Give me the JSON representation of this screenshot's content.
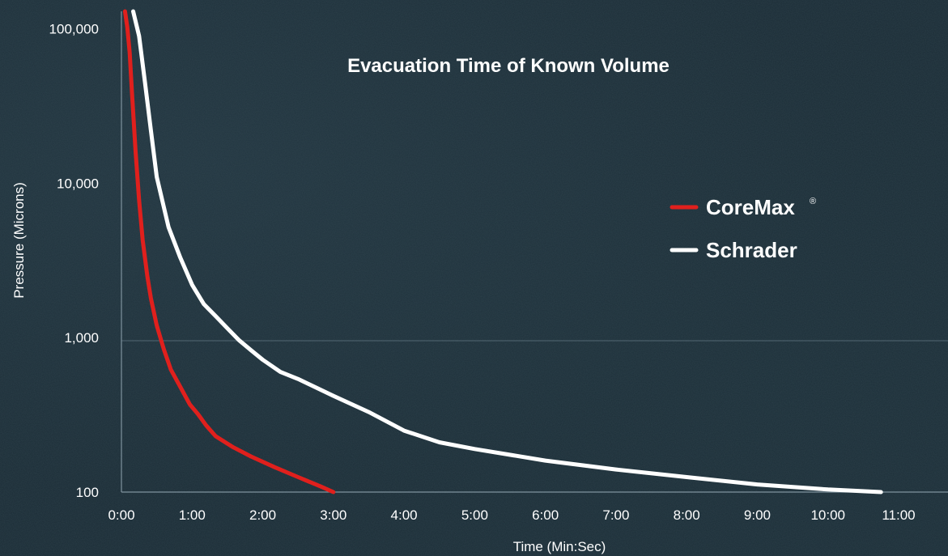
{
  "chart_data": {
    "type": "line",
    "title": "Evacuation Time of Known Volume",
    "xlabel": "Time (Min:Sec)",
    "ylabel": "Pressure (Microns)",
    "y_scale": "log",
    "xlim": [
      "0:00",
      "11:00"
    ],
    "ylim": [
      100,
      130000
    ],
    "x_ticks": [
      "0:00",
      "1:00",
      "2:00",
      "3:00",
      "4:00",
      "5:00",
      "6:00",
      "7:00",
      "8:00",
      "9:00",
      "10:00",
      "11:00"
    ],
    "y_ticks": [
      "100",
      "1,000",
      "10,000",
      "100,000"
    ],
    "grid": "horizontal line at 1,000",
    "legend": {
      "placement": "right",
      "super": "®"
    },
    "series": [
      {
        "name": "CoreMax",
        "color": "#e0201d",
        "x": [
          "0:03",
          "0:05",
          "0:07",
          "0:09",
          "0:12",
          "0:15",
          "0:18",
          "0:22",
          "0:25",
          "0:30",
          "0:36",
          "0:42",
          "0:50",
          "0:58",
          "1:05",
          "1:12",
          "1:20",
          "1:35",
          "1:50",
          "2:10",
          "2:30",
          "2:50",
          "3:00"
        ],
        "y": [
          130000,
          102000,
          70000,
          38000,
          16000,
          7800,
          4300,
          2500,
          1800,
          1200,
          840,
          620,
          480,
          370,
          320,
          270,
          230,
          195,
          170,
          145,
          125,
          108,
          100
        ]
      },
      {
        "name": "Schrader",
        "color": "#ffffff",
        "x": [
          "0:10",
          "0:15",
          "0:20",
          "0:25",
          "0:30",
          "0:40",
          "0:50",
          "1:00",
          "1:10",
          "1:20",
          "1:30",
          "1:40",
          "1:50",
          "2:00",
          "2:15",
          "2:30",
          "3:00",
          "3:30",
          "4:00",
          "4:30",
          "5:00",
          "6:00",
          "7:00",
          "8:00",
          "9:00",
          "10:00",
          "10:45"
        ],
        "y": [
          130000,
          90000,
          45000,
          22000,
          11000,
          5200,
          3300,
          2200,
          1650,
          1380,
          1150,
          960,
          830,
          720,
          600,
          540,
          420,
          330,
          250,
          210,
          190,
          160,
          140,
          125,
          112,
          104,
          100
        ]
      }
    ]
  }
}
